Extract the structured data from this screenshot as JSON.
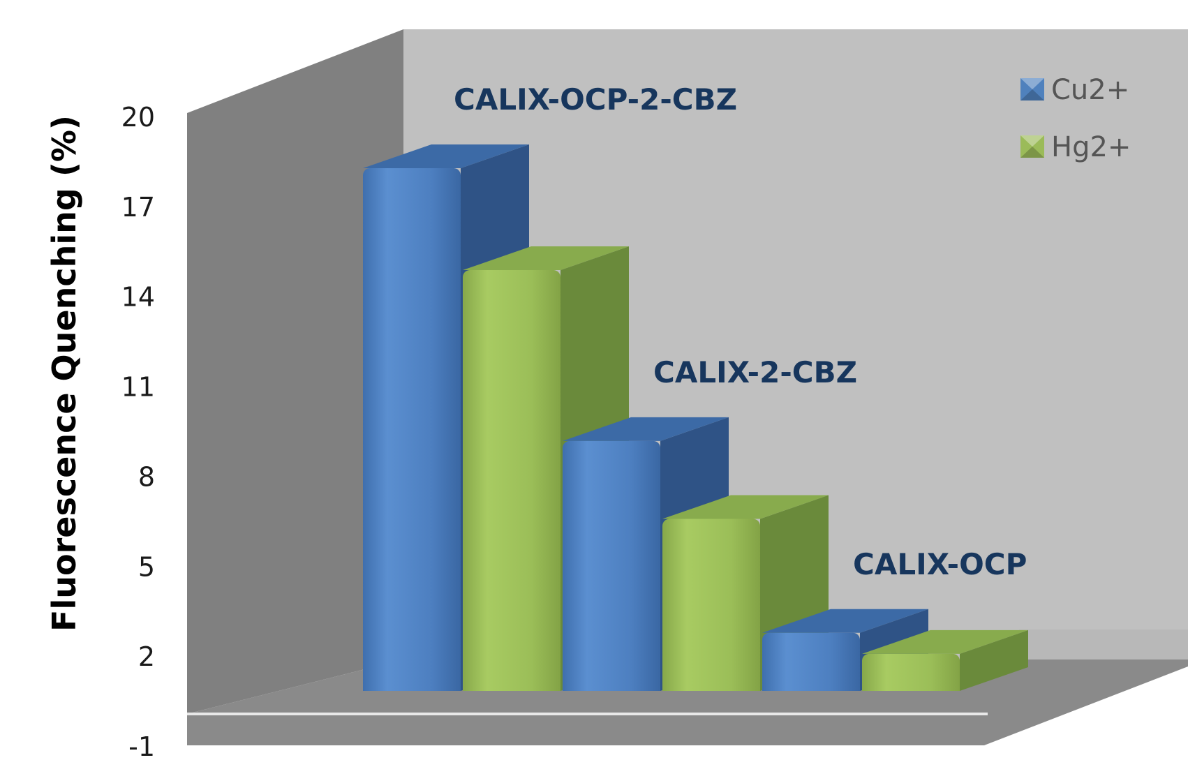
{
  "chart_data": {
    "type": "bar",
    "categories": [
      "CALIX-OCP-2-CBZ",
      "CALIX-2-CBZ",
      "CALIX-OCP"
    ],
    "series": [
      {
        "name": "Cu2+",
        "values": [
          18.3,
          9.2,
          2.8
        ]
      },
      {
        "name": "Hg2+",
        "values": [
          14.9,
          6.6,
          2.1
        ]
      }
    ],
    "ylabel": "Fluorescence Quenching (%)",
    "ylim": [
      -1,
      20
    ],
    "yticks": [
      "20",
      "17",
      "14",
      "11",
      "8",
      "5",
      "2",
      "-1"
    ],
    "legend": "top-right",
    "colors": {
      "Cu2+": "#4f81bd",
      "Hg2+": "#9bbb59"
    }
  }
}
